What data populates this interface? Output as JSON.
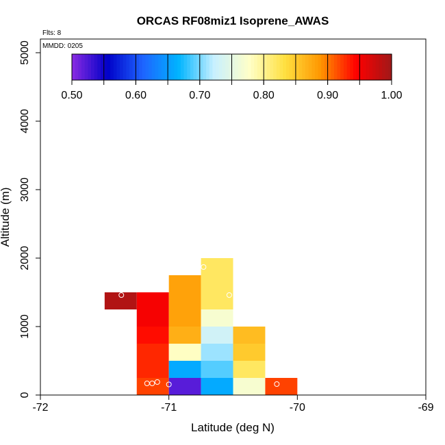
{
  "chart_data": {
    "type": "heatmap",
    "title": "ORCAS RF08miz1 Isoprene_AWAS",
    "xlabel": "Latitude (deg N)",
    "ylabel": "Altitude (m)",
    "xlim": [
      -72,
      -69
    ],
    "ylim": [
      0,
      5200
    ],
    "xticks": [
      -72,
      -71,
      -70,
      -69
    ],
    "xtick_labels": [
      "-72",
      "-71",
      "-70",
      "-69"
    ],
    "yticks": [
      0,
      1000,
      2000,
      3000,
      4000,
      5000
    ],
    "ytick_labels": [
      "0",
      "1000",
      "2000",
      "3000",
      "4000",
      "5000"
    ],
    "flights_label": "Flts: 8",
    "mmdd_label": "MMDD: 0205",
    "colorbar": {
      "min": 0.5,
      "max": 1.0,
      "ticks": [
        0.5,
        0.6,
        0.7,
        0.8,
        0.9,
        1.0
      ],
      "tick_labels": [
        "0.50",
        "0.60",
        "0.70",
        "0.80",
        "0.90",
        "1.00"
      ],
      "colors": [
        "#8a2be2",
        "#0000c8",
        "#1e64ff",
        "#00b4ff",
        "#c8f0ff",
        "#ffffc8",
        "#ffe040",
        "#ff9600",
        "#ff0000",
        "#a01818"
      ]
    },
    "cell_size": {
      "lat": 0.25,
      "alt": 250
    },
    "cells": [
      {
        "lat": -71.5,
        "alt": 1250,
        "value": 0.99
      },
      {
        "lat": -71.25,
        "alt": 1250,
        "value": 0.95
      },
      {
        "lat": -71.25,
        "alt": 1000,
        "value": 0.95
      },
      {
        "lat": -71.25,
        "alt": 750,
        "value": 0.94
      },
      {
        "lat": -71.25,
        "alt": 500,
        "value": 0.93
      },
      {
        "lat": -71.25,
        "alt": 250,
        "value": 0.93
      },
      {
        "lat": -71.25,
        "alt": 0,
        "value": 0.92
      },
      {
        "lat": -71.0,
        "alt": 1500,
        "value": 0.88
      },
      {
        "lat": -71.0,
        "alt": 1250,
        "value": 0.88
      },
      {
        "lat": -71.0,
        "alt": 1000,
        "value": 0.88
      },
      {
        "lat": -71.0,
        "alt": 750,
        "value": 0.87
      },
      {
        "lat": -71.0,
        "alt": 500,
        "value": 0.78
      },
      {
        "lat": -71.0,
        "alt": 250,
        "value": 0.66
      },
      {
        "lat": -71.0,
        "alt": 0,
        "value": 0.52
      },
      {
        "lat": -70.75,
        "alt": 1750,
        "value": 0.82
      },
      {
        "lat": -70.75,
        "alt": 1500,
        "value": 0.82
      },
      {
        "lat": -70.75,
        "alt": 1250,
        "value": 0.82
      },
      {
        "lat": -70.75,
        "alt": 1000,
        "value": 0.77
      },
      {
        "lat": -70.75,
        "alt": 750,
        "value": 0.73
      },
      {
        "lat": -70.75,
        "alt": 500,
        "value": 0.71
      },
      {
        "lat": -70.75,
        "alt": 250,
        "value": 0.69
      },
      {
        "lat": -70.75,
        "alt": 0,
        "value": 0.66
      },
      {
        "lat": -70.5,
        "alt": 750,
        "value": 0.86
      },
      {
        "lat": -70.5,
        "alt": 500,
        "value": 0.85
      },
      {
        "lat": -70.5,
        "alt": 250,
        "value": 0.82
      },
      {
        "lat": -70.5,
        "alt": 0,
        "value": 0.77
      },
      {
        "lat": -70.25,
        "alt": 0,
        "value": 0.92
      }
    ],
    "points": [
      {
        "lat": -71.37,
        "alt": 1460
      },
      {
        "lat": -71.17,
        "alt": 170
      },
      {
        "lat": -71.13,
        "alt": 170
      },
      {
        "lat": -71.09,
        "alt": 190
      },
      {
        "lat": -71.0,
        "alt": 155
      },
      {
        "lat": -70.73,
        "alt": 1870
      },
      {
        "lat": -70.53,
        "alt": 1460
      },
      {
        "lat": -70.16,
        "alt": 160
      }
    ]
  }
}
